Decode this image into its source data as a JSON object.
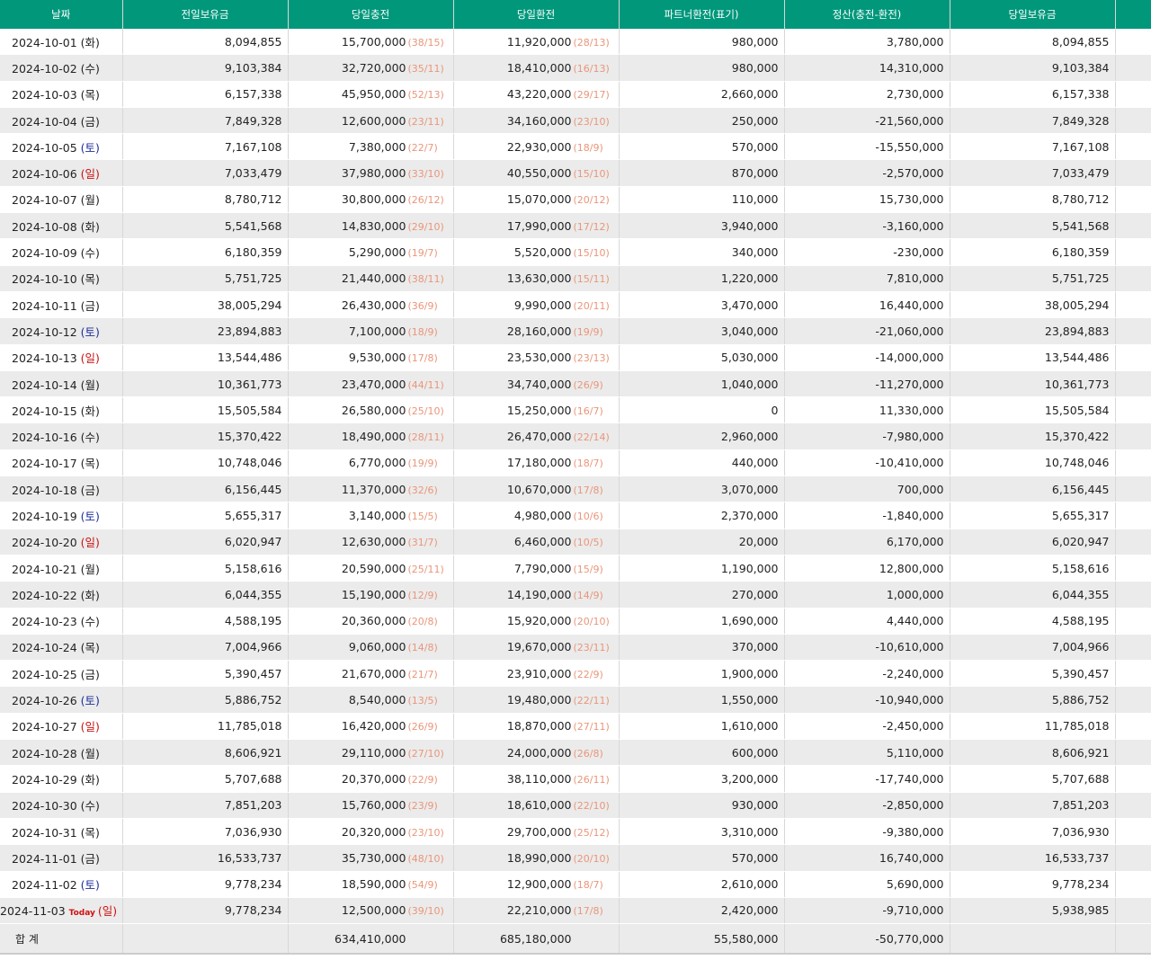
{
  "table": {
    "headers": [
      "날짜",
      "전일보유금",
      "당일충전",
      "당일환전",
      "파트너환전(표기)",
      "정산(충전-환전)",
      "당일보유금"
    ],
    "rows": [
      {
        "date": "2024-10-01",
        "day": "(화)",
        "prev": "8,094,855",
        "charge": "15,700,000",
        "charge_count": "(38/15)",
        "exchange": "11,920,000",
        "exchange_count": "(28/13)",
        "partner": "980,000",
        "settle": "3,780,000",
        "balance": "8,094,855"
      },
      {
        "date": "2024-10-02",
        "day": "(수)",
        "prev": "9,103,384",
        "charge": "32,720,000",
        "charge_count": "(35/11)",
        "exchange": "18,410,000",
        "exchange_count": "(16/13)",
        "partner": "980,000",
        "settle": "14,310,000",
        "balance": "9,103,384"
      },
      {
        "date": "2024-10-03",
        "day": "(목)",
        "prev": "6,157,338",
        "charge": "45,950,000",
        "charge_count": "(52/13)",
        "exchange": "43,220,000",
        "exchange_count": "(29/17)",
        "partner": "2,660,000",
        "settle": "2,730,000",
        "balance": "6,157,338"
      },
      {
        "date": "2024-10-04",
        "day": "(금)",
        "prev": "7,849,328",
        "charge": "12,600,000",
        "charge_count": "(23/11)",
        "exchange": "34,160,000",
        "exchange_count": "(23/10)",
        "partner": "250,000",
        "settle": "-21,560,000",
        "balance": "7,849,328"
      },
      {
        "date": "2024-10-05",
        "day": "(토)",
        "day_color": "#1c2f9c",
        "prev": "7,167,108",
        "charge": "7,380,000",
        "charge_count": "(22/7)",
        "exchange": "22,930,000",
        "exchange_count": "(18/9)",
        "partner": "570,000",
        "settle": "-15,550,000",
        "balance": "7,167,108"
      },
      {
        "date": "2024-10-06",
        "day": "(일)",
        "day_color": "#cc1111",
        "prev": "7,033,479",
        "charge": "37,980,000",
        "charge_count": "(33/10)",
        "exchange": "40,550,000",
        "exchange_count": "(15/10)",
        "partner": "870,000",
        "settle": "-2,570,000",
        "balance": "7,033,479"
      },
      {
        "date": "2024-10-07",
        "day": "(월)",
        "prev": "8,780,712",
        "charge": "30,800,000",
        "charge_count": "(26/12)",
        "exchange": "15,070,000",
        "exchange_count": "(20/12)",
        "partner": "110,000",
        "settle": "15,730,000",
        "balance": "8,780,712"
      },
      {
        "date": "2024-10-08",
        "day": "(화)",
        "prev": "5,541,568",
        "charge": "14,830,000",
        "charge_count": "(29/10)",
        "exchange": "17,990,000",
        "exchange_count": "(17/12)",
        "partner": "3,940,000",
        "settle": "-3,160,000",
        "balance": "5,541,568"
      },
      {
        "date": "2024-10-09",
        "day": "(수)",
        "prev": "6,180,359",
        "charge": "5,290,000",
        "charge_count": "(19/7)",
        "exchange": "5,520,000",
        "exchange_count": "(15/10)",
        "partner": "340,000",
        "settle": "-230,000",
        "balance": "6,180,359"
      },
      {
        "date": "2024-10-10",
        "day": "(목)",
        "prev": "5,751,725",
        "charge": "21,440,000",
        "charge_count": "(38/11)",
        "exchange": "13,630,000",
        "exchange_count": "(15/11)",
        "partner": "1,220,000",
        "settle": "7,810,000",
        "balance": "5,751,725"
      },
      {
        "date": "2024-10-11",
        "day": "(금)",
        "prev": "38,005,294",
        "charge": "26,430,000",
        "charge_count": "(36/9)",
        "exchange": "9,990,000",
        "exchange_count": "(20/11)",
        "partner": "3,470,000",
        "settle": "16,440,000",
        "balance": "38,005,294"
      },
      {
        "date": "2024-10-12",
        "day": "(토)",
        "day_color": "#1c2f9c",
        "prev": "23,894,883",
        "charge": "7,100,000",
        "charge_count": "(18/9)",
        "exchange": "28,160,000",
        "exchange_count": "(19/9)",
        "partner": "3,040,000",
        "settle": "-21,060,000",
        "balance": "23,894,883"
      },
      {
        "date": "2024-10-13",
        "day": "(일)",
        "day_color": "#cc1111",
        "prev": "13,544,486",
        "charge": "9,530,000",
        "charge_count": "(17/8)",
        "exchange": "23,530,000",
        "exchange_count": "(23/13)",
        "partner": "5,030,000",
        "settle": "-14,000,000",
        "balance": "13,544,486"
      },
      {
        "date": "2024-10-14",
        "day": "(월)",
        "prev": "10,361,773",
        "charge": "23,470,000",
        "charge_count": "(44/11)",
        "exchange": "34,740,000",
        "exchange_count": "(26/9)",
        "partner": "1,040,000",
        "settle": "-11,270,000",
        "balance": "10,361,773"
      },
      {
        "date": "2024-10-15",
        "day": "(화)",
        "prev": "15,505,584",
        "charge": "26,580,000",
        "charge_count": "(25/10)",
        "exchange": "15,250,000",
        "exchange_count": "(16/7)",
        "partner": "0",
        "settle": "11,330,000",
        "balance": "15,505,584"
      },
      {
        "date": "2024-10-16",
        "day": "(수)",
        "prev": "15,370,422",
        "charge": "18,490,000",
        "charge_count": "(28/11)",
        "exchange": "26,470,000",
        "exchange_count": "(22/14)",
        "partner": "2,960,000",
        "settle": "-7,980,000",
        "balance": "15,370,422"
      },
      {
        "date": "2024-10-17",
        "day": "(목)",
        "prev": "10,748,046",
        "charge": "6,770,000",
        "charge_count": "(19/9)",
        "exchange": "17,180,000",
        "exchange_count": "(18/7)",
        "partner": "440,000",
        "settle": "-10,410,000",
        "balance": "10,748,046"
      },
      {
        "date": "2024-10-18",
        "day": "(금)",
        "prev": "6,156,445",
        "charge": "11,370,000",
        "charge_count": "(32/6)",
        "exchange": "10,670,000",
        "exchange_count": "(17/8)",
        "partner": "3,070,000",
        "settle": "700,000",
        "balance": "6,156,445"
      },
      {
        "date": "2024-10-19",
        "day": "(토)",
        "day_color": "#1c2f9c",
        "prev": "5,655,317",
        "charge": "3,140,000",
        "charge_count": "(15/5)",
        "exchange": "4,980,000",
        "exchange_count": "(10/6)",
        "partner": "2,370,000",
        "settle": "-1,840,000",
        "balance": "5,655,317"
      },
      {
        "date": "2024-10-20",
        "day": "(일)",
        "day_color": "#cc1111",
        "prev": "6,020,947",
        "charge": "12,630,000",
        "charge_count": "(31/7)",
        "exchange": "6,460,000",
        "exchange_count": "(10/5)",
        "partner": "20,000",
        "settle": "6,170,000",
        "balance": "6,020,947"
      },
      {
        "date": "2024-10-21",
        "day": "(월)",
        "prev": "5,158,616",
        "charge": "20,590,000",
        "charge_count": "(25/11)",
        "exchange": "7,790,000",
        "exchange_count": "(15/9)",
        "partner": "1,190,000",
        "settle": "12,800,000",
        "balance": "5,158,616"
      },
      {
        "date": "2024-10-22",
        "day": "(화)",
        "prev": "6,044,355",
        "charge": "15,190,000",
        "charge_count": "(12/9)",
        "exchange": "14,190,000",
        "exchange_count": "(14/9)",
        "partner": "270,000",
        "settle": "1,000,000",
        "balance": "6,044,355"
      },
      {
        "date": "2024-10-23",
        "day": "(수)",
        "prev": "4,588,195",
        "charge": "20,360,000",
        "charge_count": "(20/8)",
        "exchange": "15,920,000",
        "exchange_count": "(20/10)",
        "partner": "1,690,000",
        "settle": "4,440,000",
        "balance": "4,588,195"
      },
      {
        "date": "2024-10-24",
        "day": "(목)",
        "prev": "7,004,966",
        "charge": "9,060,000",
        "charge_count": "(14/8)",
        "exchange": "19,670,000",
        "exchange_count": "(23/11)",
        "partner": "370,000",
        "settle": "-10,610,000",
        "balance": "7,004,966"
      },
      {
        "date": "2024-10-25",
        "day": "(금)",
        "prev": "5,390,457",
        "charge": "21,670,000",
        "charge_count": "(21/7)",
        "exchange": "23,910,000",
        "exchange_count": "(22/9)",
        "partner": "1,900,000",
        "settle": "-2,240,000",
        "balance": "5,390,457"
      },
      {
        "date": "2024-10-26",
        "day": "(토)",
        "day_color": "#1c2f9c",
        "prev": "5,886,752",
        "charge": "8,540,000",
        "charge_count": "(13/5)",
        "exchange": "19,480,000",
        "exchange_count": "(22/11)",
        "partner": "1,550,000",
        "settle": "-10,940,000",
        "balance": "5,886,752"
      },
      {
        "date": "2024-10-27",
        "day": "(일)",
        "day_color": "#cc1111",
        "prev": "11,785,018",
        "charge": "16,420,000",
        "charge_count": "(26/9)",
        "exchange": "18,870,000",
        "exchange_count": "(27/11)",
        "partner": "1,610,000",
        "settle": "-2,450,000",
        "balance": "11,785,018"
      },
      {
        "date": "2024-10-28",
        "day": "(월)",
        "prev": "8,606,921",
        "charge": "29,110,000",
        "charge_count": "(27/10)",
        "exchange": "24,000,000",
        "exchange_count": "(26/8)",
        "partner": "600,000",
        "settle": "5,110,000",
        "balance": "8,606,921"
      },
      {
        "date": "2024-10-29",
        "day": "(화)",
        "prev": "5,707,688",
        "charge": "20,370,000",
        "charge_count": "(22/9)",
        "exchange": "38,110,000",
        "exchange_count": "(26/11)",
        "partner": "3,200,000",
        "settle": "-17,740,000",
        "balance": "5,707,688"
      },
      {
        "date": "2024-10-30",
        "day": "(수)",
        "prev": "7,851,203",
        "charge": "15,760,000",
        "charge_count": "(23/9)",
        "exchange": "18,610,000",
        "exchange_count": "(22/10)",
        "partner": "930,000",
        "settle": "-2,850,000",
        "balance": "7,851,203"
      },
      {
        "date": "2024-10-31",
        "day": "(목)",
        "prev": "7,036,930",
        "charge": "20,320,000",
        "charge_count": "(23/10)",
        "exchange": "29,700,000",
        "exchange_count": "(25/12)",
        "partner": "3,310,000",
        "settle": "-9,380,000",
        "balance": "7,036,930"
      },
      {
        "date": "2024-11-01",
        "day": "(금)",
        "prev": "16,533,737",
        "charge": "35,730,000",
        "charge_count": "(48/10)",
        "exchange": "18,990,000",
        "exchange_count": "(20/10)",
        "partner": "570,000",
        "settle": "16,740,000",
        "balance": "16,533,737"
      },
      {
        "date": "2024-11-02",
        "day": "(토)",
        "day_color": "#1c2f9c",
        "prev": "9,778,234",
        "charge": "18,590,000",
        "charge_count": "(54/9)",
        "exchange": "12,900,000",
        "exchange_count": "(18/7)",
        "partner": "2,610,000",
        "settle": "5,690,000",
        "balance": "9,778,234"
      },
      {
        "date": "2024-11-03",
        "tag": "Today",
        "day": "(일)",
        "day_color": "#cc1111",
        "prev": "9,778,234",
        "charge": "12,500,000",
        "charge_count": "(39/10)",
        "exchange": "22,210,000",
        "exchange_count": "(17/8)",
        "partner": "2,420,000",
        "settle": "-9,710,000",
        "balance": "5,938,985"
      }
    ],
    "total": {
      "label": "합 계",
      "charge": "634,410,000",
      "exchange": "685,180,000",
      "partner": "55,580,000",
      "settle": "-50,770,000"
    }
  }
}
